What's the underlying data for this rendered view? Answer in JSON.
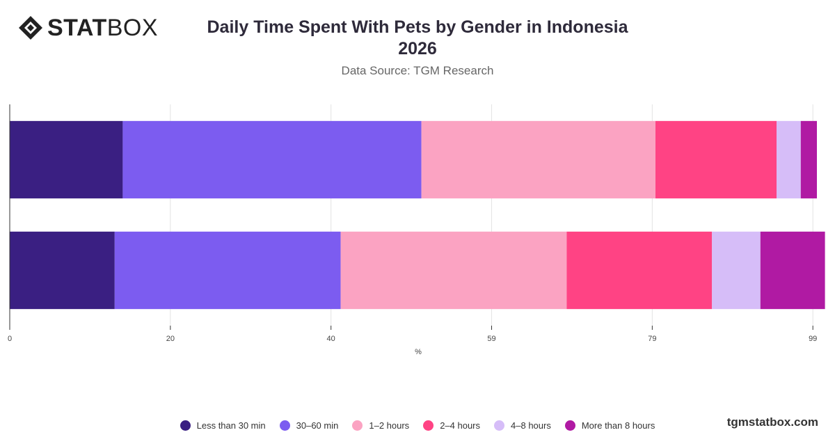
{
  "brand": {
    "logo_bold": "STAT",
    "logo_light": "BOX",
    "watermark": "tgmstatbox.com"
  },
  "chart_data": {
    "type": "bar",
    "orientation": "horizontal",
    "stacked": true,
    "title_line1": "Daily Time Spent With Pets by Gender in Indonesia",
    "title_line2": "2026",
    "subtitle": "Data Source: TGM Research",
    "xlabel": "%",
    "xlim": [
      0,
      100
    ],
    "x_ticks": [
      "0",
      "20",
      "40",
      "59",
      "79",
      "99"
    ],
    "x_tick_values": [
      0,
      19.9,
      39.8,
      59.7,
      79.6,
      99.5
    ],
    "grid": true,
    "legend_position": "bottom",
    "categories": [
      "",
      ""
    ],
    "series": [
      {
        "name": "Less than 30 min",
        "color": "#3a1f82",
        "values": [
          14,
          13
        ]
      },
      {
        "name": "30–60 min",
        "color": "#7c5cf0",
        "values": [
          37,
          28
        ]
      },
      {
        "name": "1–2 hours",
        "color": "#fba3c2",
        "values": [
          29,
          28
        ]
      },
      {
        "name": "2–4 hours",
        "color": "#ff4384",
        "values": [
          15,
          18
        ]
      },
      {
        "name": "4–8 hours",
        "color": "#d6bdf8",
        "values": [
          3,
          6
        ]
      },
      {
        "name": "More than 8 hours",
        "color": "#b01aa3",
        "values": [
          2,
          8
        ]
      }
    ]
  }
}
